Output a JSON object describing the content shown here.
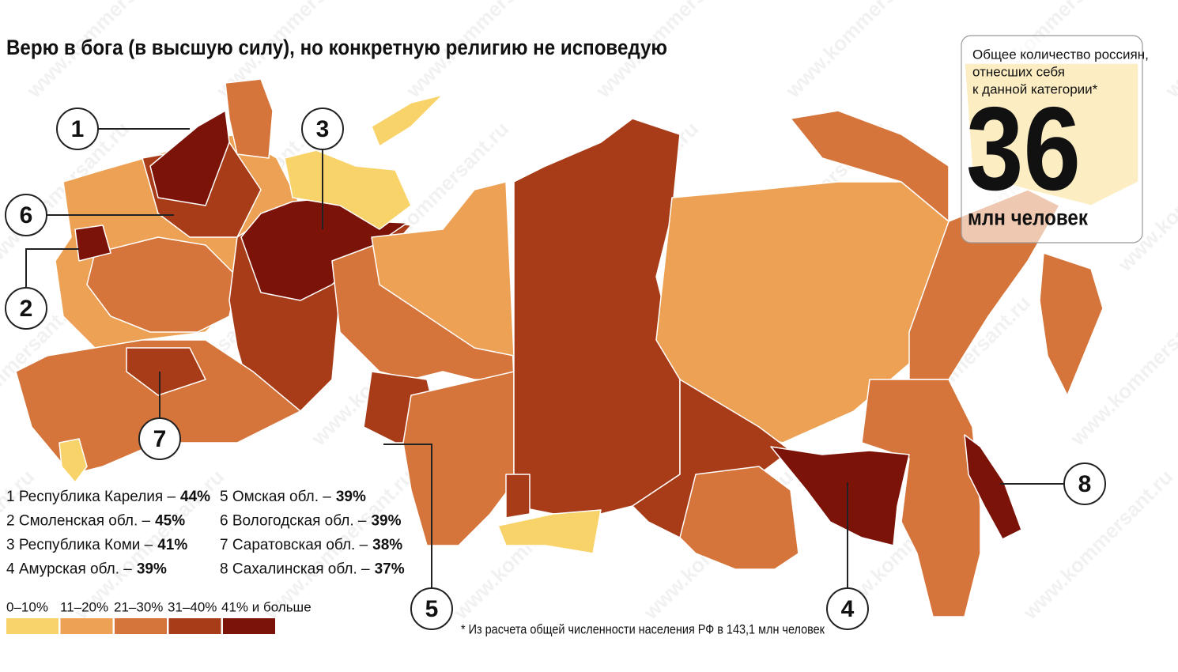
{
  "title": "Верю в бога (в высшую силу), но конкретную религию не исповедую",
  "info_box": {
    "lines": [
      "Общее количество россиян,",
      "отнесших себя",
      "к данной категории*"
    ],
    "number": "36",
    "unit": "млн человек"
  },
  "callouts": [
    "1",
    "2",
    "3",
    "4",
    "5",
    "6",
    "7",
    "8"
  ],
  "regions": [
    {
      "label": "1 Республика Карелия –",
      "value": "44%"
    },
    {
      "label": "2 Смоленская обл. –",
      "value": "45%"
    },
    {
      "label": "3 Республика Коми –",
      "value": "41%"
    },
    {
      "label": "4 Амурская обл. –",
      "value": "39%"
    },
    {
      "label": "5 Омская обл. –",
      "value": "39%"
    },
    {
      "label": "6 Вологодская обл. –",
      "value": "39%"
    },
    {
      "label": "7 Саратовская обл. –",
      "value": "38%"
    },
    {
      "label": "8 Сахалинская обл. –",
      "value": "37%"
    }
  ],
  "legend": [
    {
      "label": "0–10%",
      "color": "#f8d36a"
    },
    {
      "label": "11–20%",
      "color": "#eda154"
    },
    {
      "label": "21–30%",
      "color": "#d5753b"
    },
    {
      "label": "31–40%",
      "color": "#a83c19"
    },
    {
      "label": "41% и больше",
      "color": "#7c1309"
    }
  ],
  "footnote": "* Из расчета общей численности населения РФ в 143,1 млн человек",
  "watermark": "www.kommersant.ru"
}
